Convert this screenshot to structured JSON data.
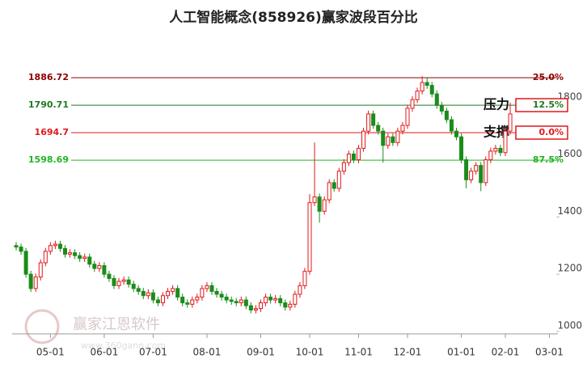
{
  "chart_data": {
    "type": "candlestick",
    "title": "人工智能概念(858926)赢家波段百分比",
    "watermark": "赢家江恩软件",
    "watermark_url": "www.360gann.com",
    "up_color": "#e0181b",
    "down_color": "#1a8c1a",
    "categories": [
      null,
      null,
      null,
      null,
      null,
      null,
      null,
      "05-01",
      null,
      null,
      null,
      null,
      null,
      null,
      null,
      null,
      null,
      null,
      "06-01",
      null,
      null,
      null,
      null,
      null,
      null,
      null,
      null,
      null,
      "07-01",
      null,
      null,
      null,
      null,
      null,
      null,
      null,
      null,
      null,
      null,
      "08-01",
      null,
      null,
      null,
      null,
      null,
      null,
      null,
      null,
      null,
      null,
      "09-01",
      null,
      null,
      null,
      null,
      null,
      null,
      null,
      null,
      null,
      "10-01",
      null,
      null,
      null,
      null,
      null,
      null,
      null,
      null,
      null,
      "11-01",
      null,
      null,
      null,
      null,
      null,
      null,
      null,
      null,
      null,
      "12-01",
      null,
      null,
      null,
      null,
      null,
      null,
      null,
      null,
      null,
      null,
      "01-01",
      null,
      null,
      null,
      null,
      null,
      null,
      null,
      null,
      "02-01",
      null,
      null,
      null,
      null,
      null,
      null,
      null,
      null,
      "03-01",
      null
    ],
    "open": [
      1300,
      1295,
      1280,
      1200,
      1150,
      1190,
      1240,
      1280,
      1300,
      1305,
      1290,
      1270,
      1275,
      1265,
      1255,
      1260,
      1235,
      1220,
      1230,
      1200,
      1185,
      1160,
      1175,
      1180,
      1165,
      1150,
      1140,
      1125,
      1135,
      1110,
      1100,
      1125,
      1140,
      1150,
      1120,
      1100,
      1095,
      1110,
      1120,
      1150,
      1160,
      1140,
      1130,
      1120,
      1110,
      1105,
      1100,
      1110,
      1090,
      1075,
      1080,
      1100,
      1120,
      1110,
      1115,
      1100,
      1085,
      1095,
      1130,
      1160,
      1210,
      1450,
      1470,
      1420,
      1460,
      1520,
      1500,
      1560,
      1590,
      1620,
      1600,
      1640,
      1700,
      1760,
      1720,
      1700,
      1650,
      1680,
      1660,
      1700,
      1720,
      1780,
      1810,
      1840,
      1870,
      1860,
      1830,
      1790,
      1770,
      1740,
      1700,
      1680,
      1600,
      1530,
      1560,
      1580,
      1520,
      1600,
      1630,
      1640,
      1625,
      1700,
      null,
      null,
      null,
      null,
      null,
      null,
      null,
      null,
      null
    ],
    "high": [
      1312,
      1307,
      1292,
      1212,
      1202,
      1252,
      1292,
      1312,
      1317,
      1317,
      1302,
      1287,
      1287,
      1277,
      1272,
      1272,
      1247,
      1242,
      1242,
      1212,
      1197,
      1187,
      1192,
      1192,
      1177,
      1162,
      1152,
      1147,
      1147,
      1122,
      1137,
      1152,
      1162,
      1162,
      1132,
      1112,
      1122,
      1132,
      1162,
      1172,
      1172,
      1152,
      1142,
      1132,
      1122,
      1117,
      1122,
      1122,
      1102,
      1092,
      1112,
      1132,
      1132,
      1127,
      1127,
      1112,
      1107,
      1142,
      1172,
      1222,
      1480,
      1660,
      1482,
      1472,
      1532,
      1532,
      1572,
      1602,
      1632,
      1632,
      1652,
      1712,
      1772,
      1772,
      1732,
      1712,
      1692,
      1692,
      1712,
      1732,
      1792,
      1822,
      1852,
      1892,
      1888,
      1872,
      1842,
      1802,
      1782,
      1752,
      1712,
      1692,
      1612,
      1572,
      1592,
      1592,
      1612,
      1642,
      1652,
      1652,
      1712,
      1800,
      null,
      null,
      null,
      null,
      null,
      null,
      null,
      null,
      null
    ],
    "low": [
      1283,
      1268,
      1188,
      1138,
      1138,
      1178,
      1228,
      1268,
      1288,
      1278,
      1258,
      1258,
      1253,
      1243,
      1243,
      1223,
      1208,
      1208,
      1188,
      1173,
      1148,
      1148,
      1163,
      1153,
      1138,
      1128,
      1113,
      1113,
      1098,
      1088,
      1088,
      1113,
      1128,
      1108,
      1088,
      1083,
      1083,
      1098,
      1108,
      1138,
      1128,
      1118,
      1108,
      1098,
      1093,
      1088,
      1088,
      1078,
      1063,
      1063,
      1068,
      1088,
      1098,
      1098,
      1088,
      1073,
      1073,
      1083,
      1118,
      1148,
      1198,
      1438,
      1380,
      1408,
      1448,
      1488,
      1488,
      1548,
      1578,
      1588,
      1588,
      1628,
      1688,
      1708,
      1688,
      1590,
      1638,
      1648,
      1648,
      1688,
      1708,
      1768,
      1798,
      1828,
      1848,
      1818,
      1778,
      1758,
      1728,
      1688,
      1668,
      1588,
      1500,
      1518,
      1548,
      1490,
      1508,
      1588,
      1618,
      1613,
      1613,
      1688,
      null,
      null,
      null,
      null,
      null,
      null,
      null,
      null,
      null
    ],
    "close": [
      1295,
      1280,
      1200,
      1150,
      1190,
      1240,
      1280,
      1300,
      1305,
      1290,
      1270,
      1275,
      1265,
      1255,
      1260,
      1235,
      1220,
      1230,
      1200,
      1185,
      1160,
      1175,
      1180,
      1165,
      1150,
      1140,
      1125,
      1135,
      1110,
      1100,
      1125,
      1140,
      1150,
      1120,
      1100,
      1095,
      1110,
      1120,
      1150,
      1160,
      1140,
      1130,
      1120,
      1110,
      1105,
      1100,
      1110,
      1090,
      1075,
      1080,
      1100,
      1120,
      1110,
      1115,
      1100,
      1085,
      1095,
      1130,
      1160,
      1210,
      1450,
      1470,
      1420,
      1460,
      1520,
      1500,
      1560,
      1590,
      1620,
      1600,
      1640,
      1700,
      1760,
      1720,
      1700,
      1650,
      1680,
      1660,
      1700,
      1720,
      1780,
      1810,
      1840,
      1870,
      1860,
      1830,
      1790,
      1770,
      1740,
      1700,
      1680,
      1600,
      1530,
      1560,
      1580,
      1520,
      1600,
      1630,
      1640,
      1625,
      1700,
      1760,
      null,
      null,
      null,
      null,
      null,
      null,
      null,
      null,
      null
    ],
    "ylim": [
      1000,
      1950
    ],
    "yticks": [
      1000,
      1200,
      1400,
      1600,
      1800
    ],
    "levels": [
      {
        "value": 1886.72,
        "pct": "25.0%",
        "color": "#8b0000",
        "boxed": false
      },
      {
        "value": 1790.71,
        "pct": "12.5%",
        "color": "#1f7a1f",
        "boxed": true,
        "note": "压力"
      },
      {
        "value": 1694.7,
        "pct": "0.0%",
        "color": "#e0181b",
        "boxed": true,
        "note": "支撑"
      },
      {
        "value": 1598.69,
        "pct": "87.5%",
        "color": "#22b422",
        "boxed": false
      }
    ]
  }
}
